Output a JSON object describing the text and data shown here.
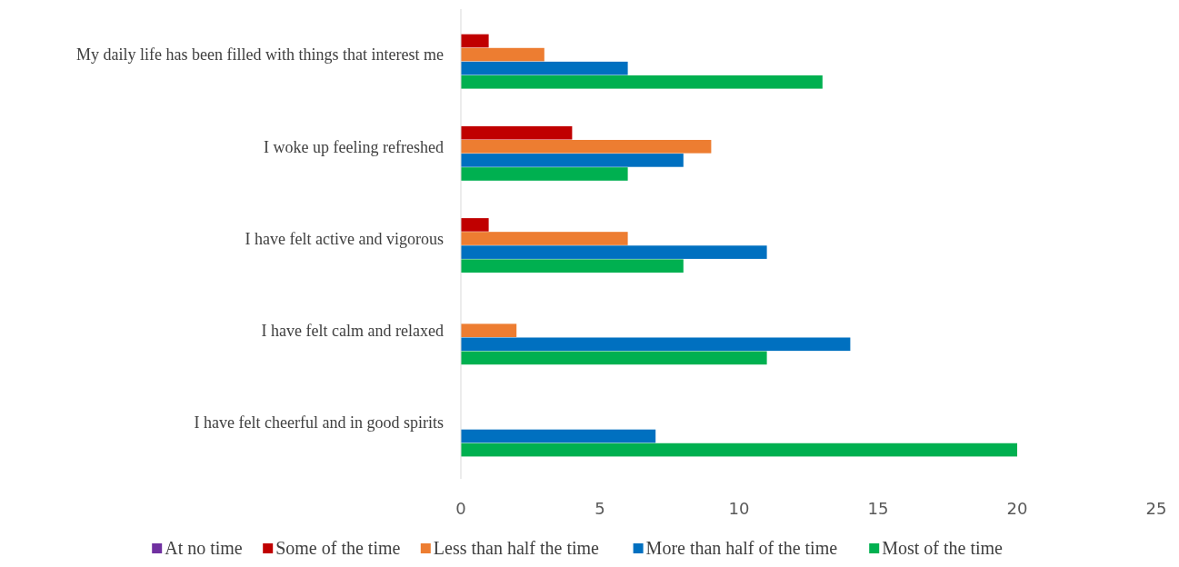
{
  "chart_data": {
    "type": "bar",
    "orientation": "horizontal",
    "categories": [
      "My daily life has been filled with things that interest me",
      "I woke up feeling refreshed",
      "I have felt active and vigorous",
      "I have felt calm and relaxed",
      "I have felt cheerful and in good spirits"
    ],
    "series": [
      {
        "name": "At no time",
        "color": "#7030a0",
        "values": [
          0,
          0,
          0,
          0,
          0
        ]
      },
      {
        "name": "Some of the time",
        "color": "#c00000",
        "values": [
          1,
          4,
          1,
          0,
          0
        ]
      },
      {
        "name": "Less than half the time",
        "color": "#ed7d31",
        "values": [
          3,
          9,
          6,
          2,
          0
        ]
      },
      {
        "name": "More than half of the time",
        "color": "#0070c0",
        "values": [
          6,
          8,
          11,
          14,
          7
        ]
      },
      {
        "name": "Most of the time",
        "color": "#00b050",
        "values": [
          13,
          6,
          8,
          11,
          20
        ]
      }
    ],
    "xlim": [
      0,
      25
    ],
    "xticks": [
      0,
      5,
      10,
      15,
      20,
      25
    ],
    "grid": false,
    "legend": "bottom"
  }
}
